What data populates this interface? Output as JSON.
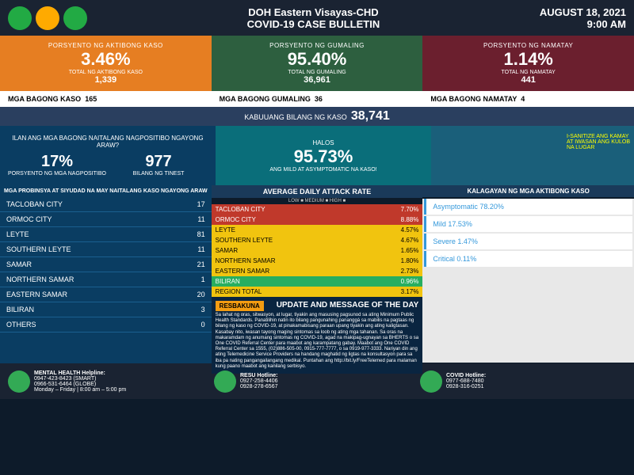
{
  "header": {
    "title": "DOH Eastern Visayas-CHD",
    "subtitle": "COVID-19 CASE BULLETIN",
    "date": "AUGUST 18, 2021",
    "time": "9:00 AM"
  },
  "top_stats": {
    "active": {
      "label": "PORSYENTO NG AKTIBONG KASO",
      "pct": "3.46%",
      "sub": "TOTAL NG AKTIBONG KASO",
      "num": "1,339",
      "color": "#e67e22"
    },
    "recovered": {
      "label": "PORSYENTO NG GUMALING",
      "pct": "95.40%",
      "sub": "TOTAL NG GUMALING",
      "num": "36,961",
      "color": "#2d5f3f"
    },
    "died": {
      "label": "PORSYENTO NG NAMATAY",
      "pct": "1.14%",
      "sub": "TOTAL NG NAMATAY",
      "num": "441",
      "color": "#6b1f2e"
    }
  },
  "mid_row": {
    "new_cases": {
      "label": "MGA BAGONG KASO",
      "val": "165"
    },
    "new_recovered": {
      "label": "MGA BAGONG GUMALING",
      "val": "36"
    },
    "new_died": {
      "label": "MGA BAGONG NAMATAY",
      "val": "4"
    }
  },
  "total": {
    "label": "KABUUANG BILANG NG KASO",
    "val": "38,741"
  },
  "positivity": {
    "question": "ILAN ANG MGA BAGONG NAITALANG NAGPOSITIBO NGAYONG ARAW?",
    "pct": "17%",
    "pct_label": "PORSYENTO NG MGA NAGPOSITIBO",
    "tested": "977",
    "tested_label": "BILANG NG TINEST"
  },
  "mild": {
    "halos": "HALOS",
    "pct": "95.73%",
    "desc": "ANG MILD AT ASYMPTOMATIC NA KASO!"
  },
  "bida": {
    "text": "I-SANITIZE ANG KAMAY AT IWASAN ANG KULOB NA LUGAR"
  },
  "provinces": {
    "header": "MGA PROBINSYA AT SIYUDAD NA MAY NAITALANG KASO NGAYONG ARAW",
    "rows": [
      {
        "name": "TACLOBAN CITY",
        "val": "17"
      },
      {
        "name": "ORMOC CITY",
        "val": "11"
      },
      {
        "name": "LEYTE",
        "val": "81"
      },
      {
        "name": "SOUTHERN LEYTE",
        "val": "11"
      },
      {
        "name": "SAMAR",
        "val": "21"
      },
      {
        "name": "NORTHERN SAMAR",
        "val": "1"
      },
      {
        "name": "EASTERN SAMAR",
        "val": "20"
      },
      {
        "name": "BILIRAN",
        "val": "3"
      },
      {
        "name": "OTHERS",
        "val": "0"
      }
    ]
  },
  "attack": {
    "title": "AVERAGE DAILY ATTACK RATE",
    "legend": "LOW ■  MEDIUM ■  HIGH ■",
    "rows": [
      {
        "name": "TACLOBAN CITY",
        "val": "7.70%",
        "level": "red"
      },
      {
        "name": "ORMOC CITY",
        "val": "8.88%",
        "level": "red"
      },
      {
        "name": "LEYTE",
        "val": "4.57%",
        "level": "yellow"
      },
      {
        "name": "SOUTHERN LEYTE",
        "val": "4.67%",
        "level": "yellow"
      },
      {
        "name": "SAMAR",
        "val": "1.65%",
        "level": "yellow"
      },
      {
        "name": "NORTHERN SAMAR",
        "val": "1.80%",
        "level": "yellow"
      },
      {
        "name": "EASTERN SAMAR",
        "val": "2.73%",
        "level": "yellow"
      },
      {
        "name": "BILIRAN",
        "val": "0.96%",
        "level": "green"
      },
      {
        "name": "REGION TOTAL",
        "val": "3.17%",
        "level": "yellow"
      }
    ]
  },
  "status": {
    "title": "KALAGAYAN NG MGA AKTIBONG KASO",
    "items": [
      {
        "label": "Asymptomatic",
        "val": "78.20%"
      },
      {
        "label": "Mild",
        "val": "17.53%"
      },
      {
        "label": "Severe",
        "val": "1.47%"
      },
      {
        "label": "Critical",
        "val": "0.11%"
      }
    ]
  },
  "message": {
    "badge": "RESBAKUNA",
    "title": "UPDATE AND MESSAGE OF THE DAY",
    "body": "Sa lahat ng oras, sitwasyon, at lugar, tiyakin ang masusing pagsunod sa ating Minimum Public Health Standards. Panatilihin natin ito bilang pangunahing pananggá sa mabilis na pagtaas ng bilang ng kaso ng COVID-19, at pinakamabisang paraan upang tiyakin ang ating kaligtasan. Kasabay nito, iwasan tayong maging sintomas sa loob ng ating mga tahanan. Sa oras na makaramdam ng anumang sintomas ng COVID-19, agad na makipag-ugnayan sa BHERTS o sa One COVID Referral Center para maabot ang karampatang gabay. Maabot ang One COVID Referral Center sa 1555, (02)886-505-00, 0915-777-7777, o sa 0919-977-3333. Nariyan din ang ating Telemedicine Service Providers na handang maghatid ng ligtas na konsultasyon para sa iba pa nating pangangailangang medikal. Puntahan ang http://bit.ly/FreeTelemed para malaman kung paano maabot ang kanilang serbisyo."
  },
  "footer": {
    "mental": {
      "title": "MENTAL HEALTH Helpline:",
      "l1": "0947-423-8423 (SMART)",
      "l2": "0966-531-6464 (GLOBE)",
      "l3": "Monday – Friday | 8:00 am – 5:00 pm"
    },
    "resu": {
      "title": "RESU Hotline:",
      "l1": "0927-258-4406",
      "l2": "0928-278-6567"
    },
    "covid": {
      "title": "COVID Hotline:",
      "l1": "0977-688-7480",
      "l2": "0928-316-0251"
    }
  }
}
